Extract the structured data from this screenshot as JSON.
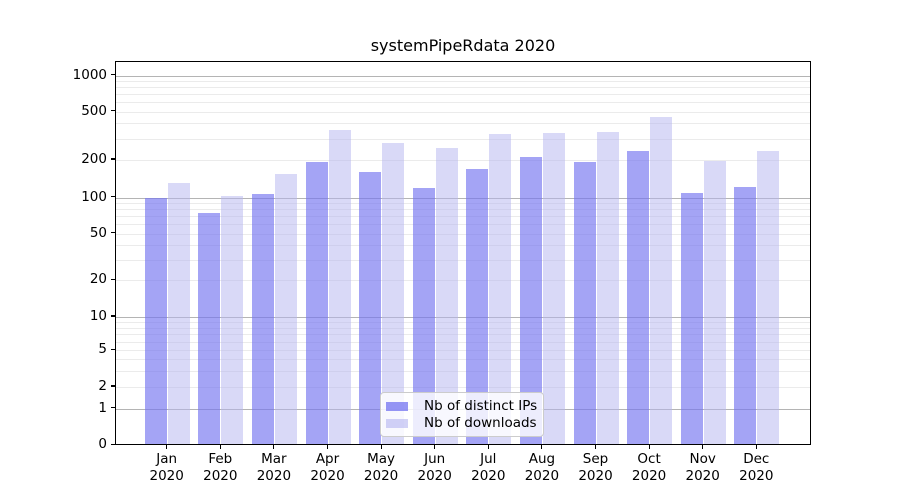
{
  "title": "systemPipeRdata 2020",
  "chart_data": {
    "type": "bar",
    "title": "systemPipeRdata 2020",
    "categories": [
      "Jan 2020",
      "Feb 2020",
      "Mar 2020",
      "Apr 2020",
      "May 2020",
      "Jun 2020",
      "Jul 2020",
      "Aug 2020",
      "Sep 2020",
      "Oct 2020",
      "Nov 2020",
      "Dec 2020"
    ],
    "series": [
      {
        "name": "Nb of distinct IPs",
        "color": "#7373f0",
        "alpha": 0.65,
        "values": [
          100,
          75,
          108,
          193,
          160,
          120,
          168,
          212,
          194,
          235,
          110,
          122
        ]
      },
      {
        "name": "Nb of downloads",
        "color": "#b4b4f0",
        "alpha": 0.5,
        "values": [
          130,
          104,
          155,
          355,
          275,
          250,
          330,
          335,
          340,
          450,
          197,
          235
        ]
      }
    ],
    "y_ticks": [
      0,
      1,
      2,
      5,
      10,
      20,
      50,
      100,
      200,
      500,
      1000
    ],
    "yscale": "symlog",
    "ylim": [
      0,
      1300
    ],
    "grid": true,
    "legend_position": "lower center",
    "axis_color": "#000000",
    "grid_minor_color": "#ebebeb",
    "grid_major_color": "#b4b4b4"
  }
}
